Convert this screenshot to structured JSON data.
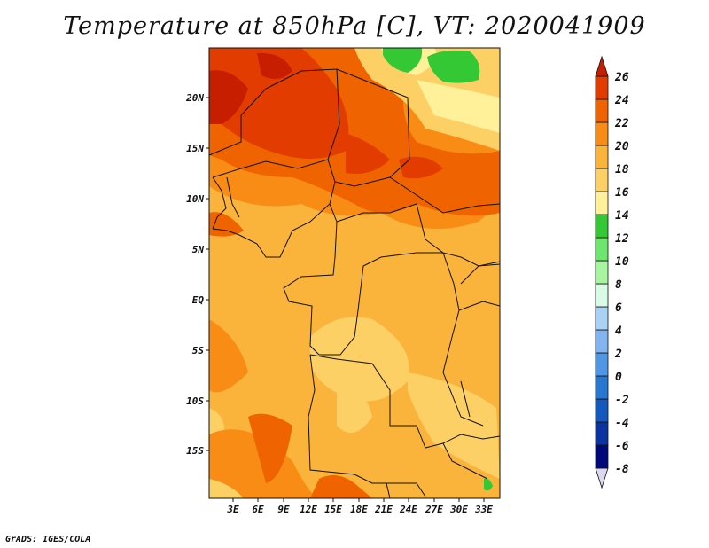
{
  "title": "Temperature at 850hPa [C], VT: 2020041909",
  "footer": "GrADS: IGES/COLA",
  "map": {
    "lat_labels": [
      "20N",
      "15N",
      "10N",
      "5N",
      "EQ",
      "5S",
      "10S",
      "15S"
    ],
    "lon_labels": [
      "3E",
      "6E",
      "9E",
      "12E",
      "15E",
      "18E",
      "21E",
      "24E",
      "27E",
      "30E",
      "33E"
    ]
  },
  "colorbar": {
    "labels": [
      "26",
      "24",
      "22",
      "20",
      "18",
      "16",
      "14",
      "12",
      "10",
      "8",
      "6",
      "4",
      "2",
      "0",
      "-2",
      "-4",
      "-6",
      "-8"
    ],
    "colors": [
      "#c81e00",
      "#e23c00",
      "#f06400",
      "#f88c14",
      "#fab43c",
      "#fcd064",
      "#fff09a",
      "#34c834",
      "#6ee66e",
      "#a8f5a0",
      "#d8fae6",
      "#aad2f5",
      "#82b4f0",
      "#5096e6",
      "#2878d2",
      "#1458be",
      "#0a32a0",
      "#00087a",
      "#ddd8f0"
    ]
  }
}
